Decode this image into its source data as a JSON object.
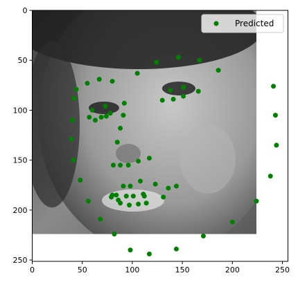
{
  "chart_data": {
    "type": "scatter",
    "title": "",
    "xlabel": "",
    "ylabel": "",
    "xlim": [
      0,
      255
    ],
    "ylim": [
      255,
      0
    ],
    "y_inverted": true,
    "grid": false,
    "xticks": [
      0,
      50,
      100,
      150,
      200,
      250
    ],
    "yticks": [
      0,
      50,
      100,
      150,
      200,
      250
    ],
    "background_image": {
      "description_icon": "grayscale-face-photo",
      "extent_x": [
        0,
        224
      ],
      "extent_y": [
        224,
        0
      ]
    },
    "legend": {
      "placement": "top-right",
      "entries": [
        "Predicted"
      ]
    },
    "series": [
      {
        "name": "Predicted",
        "color": "#008000",
        "marker": "circle",
        "points": [
          [
            44,
            79
          ],
          [
            55,
            73
          ],
          [
            67,
            69
          ],
          [
            80,
            71
          ],
          [
            105,
            63
          ],
          [
            124,
            52
          ],
          [
            146,
            47
          ],
          [
            167,
            50
          ],
          [
            186,
            60
          ],
          [
            42,
            88
          ],
          [
            40,
            110
          ],
          [
            39,
            129
          ],
          [
            41,
            150
          ],
          [
            48,
            170
          ],
          [
            56,
            191
          ],
          [
            68,
            209
          ],
          [
            82,
            224
          ],
          [
            98,
            240
          ],
          [
            117,
            244
          ],
          [
            144,
            239
          ],
          [
            171,
            226
          ],
          [
            200,
            212
          ],
          [
            224,
            191
          ],
          [
            238,
            166
          ],
          [
            244,
            135
          ],
          [
            243,
            105
          ],
          [
            241,
            76
          ],
          [
            60,
            100
          ],
          [
            57,
            107
          ],
          [
            63,
            110
          ],
          [
            69,
            107
          ],
          [
            73,
            96
          ],
          [
            78,
            103
          ],
          [
            74,
            106
          ],
          [
            130,
            90
          ],
          [
            138,
            80
          ],
          [
            141,
            89
          ],
          [
            151,
            86
          ],
          [
            151,
            77
          ],
          [
            166,
            81
          ],
          [
            92,
            93
          ],
          [
            91,
            105
          ],
          [
            88,
            118
          ],
          [
            85,
            132
          ],
          [
            81,
            155
          ],
          [
            88,
            155
          ],
          [
            96,
            155
          ],
          [
            106,
            151
          ],
          [
            117,
            148
          ],
          [
            80,
            185
          ],
          [
            86,
            190
          ],
          [
            94,
            186
          ],
          [
            101,
            186
          ],
          [
            111,
            184
          ],
          [
            123,
            174
          ],
          [
            136,
            178
          ],
          [
            144,
            176
          ],
          [
            131,
            187
          ],
          [
            79,
            187
          ],
          [
            84,
            185
          ],
          [
            88,
            193
          ],
          [
            97,
            195
          ],
          [
            106,
            194
          ],
          [
            114,
            193
          ],
          [
            91,
            176
          ],
          [
            98,
            176
          ],
          [
            108,
            171
          ],
          [
            112,
            186
          ]
        ]
      }
    ]
  }
}
